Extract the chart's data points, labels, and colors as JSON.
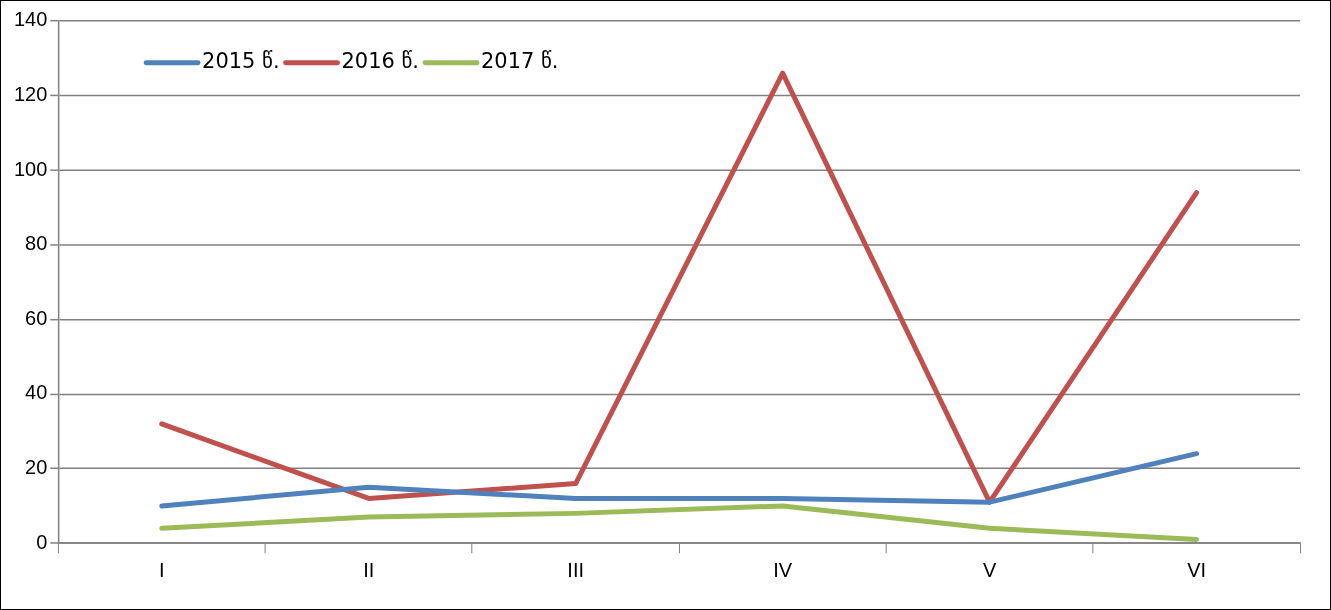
{
  "chart_data": {
    "type": "line",
    "categories": [
      "I",
      "II",
      "III",
      "IV",
      "V",
      "VI"
    ],
    "series": [
      {
        "name": "2015 წ.",
        "color": "#4f81bd",
        "values": [
          10,
          15,
          12,
          12,
          11,
          24
        ]
      },
      {
        "name": "2016 წ.",
        "color": "#c0504d",
        "values": [
          32,
          12,
          16,
          126,
          11,
          94
        ]
      },
      {
        "name": "2017 წ.",
        "color": "#9bbb59",
        "values": [
          4,
          7,
          8,
          10,
          4,
          1
        ]
      }
    ],
    "ylim": [
      0,
      140
    ],
    "yticks": [
      0,
      20,
      40,
      60,
      80,
      100,
      120,
      140
    ],
    "grid": "y",
    "legend": "top left",
    "marker": "none",
    "line_style": "solid"
  }
}
